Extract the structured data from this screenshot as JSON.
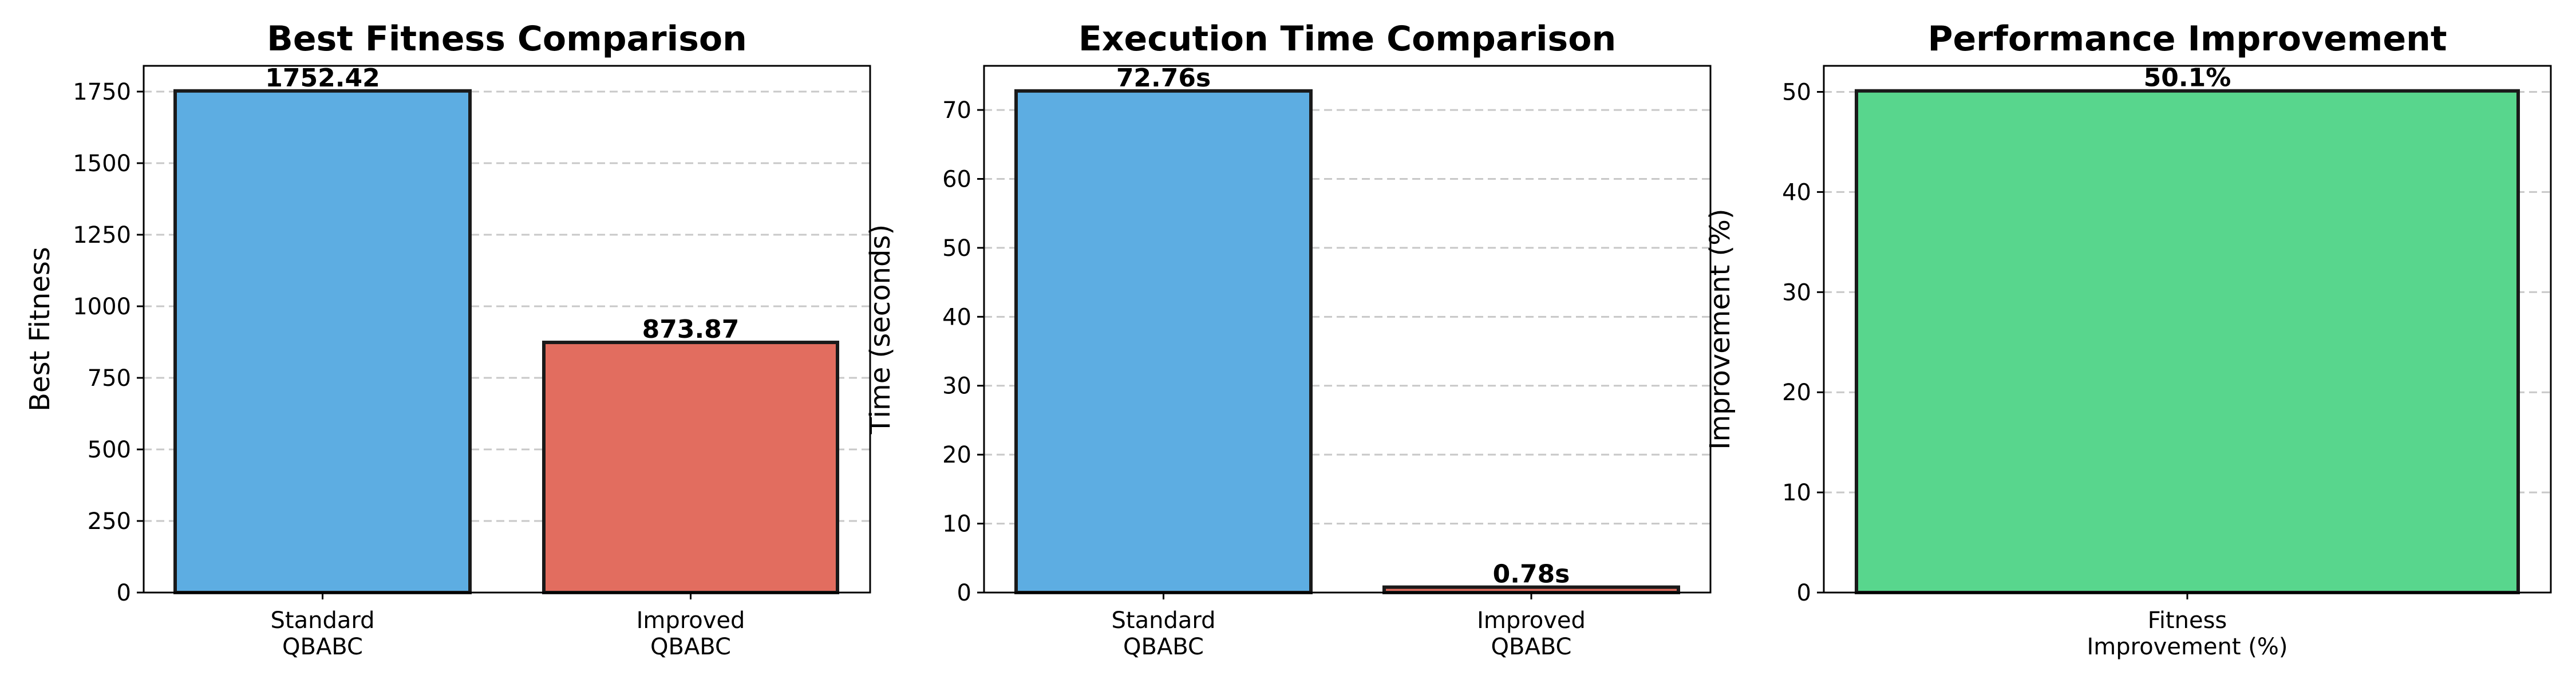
{
  "chart_data": [
    {
      "type": "bar",
      "title": "Best Fitness Comparison",
      "ylabel": "Best Fitness",
      "xlabel": "",
      "ylim": [
        0,
        1840
      ],
      "yticks": [
        0,
        250,
        500,
        750,
        1000,
        1250,
        1500,
        1750
      ],
      "categories": [
        [
          "Standard",
          "QBABC"
        ],
        [
          "Improved",
          "QBABC"
        ]
      ],
      "values": [
        1752.42,
        873.87
      ],
      "value_labels": [
        "1752.42",
        "873.87"
      ],
      "colors": [
        "#5dade2",
        "#e26d5f"
      ],
      "grid": true
    },
    {
      "type": "bar",
      "title": "Execution Time Comparison",
      "ylabel": "Time (seconds)",
      "xlabel": "",
      "ylim": [
        0,
        76.4
      ],
      "yticks": [
        0,
        10,
        20,
        30,
        40,
        50,
        60,
        70
      ],
      "categories": [
        [
          "Standard",
          "QBABC"
        ],
        [
          "Improved",
          "QBABC"
        ]
      ],
      "values": [
        72.76,
        0.78
      ],
      "value_labels": [
        "72.76s",
        "0.78s"
      ],
      "colors": [
        "#5dade2",
        "#e26d5f"
      ],
      "grid": true
    },
    {
      "type": "bar",
      "title": "Performance Improvement",
      "ylabel": "Improvement (%)",
      "xlabel": "",
      "ylim": [
        0,
        52.6
      ],
      "yticks": [
        0,
        10,
        20,
        30,
        40,
        50
      ],
      "categories": [
        [
          "Fitness",
          "Improvement (%)"
        ]
      ],
      "values": [
        50.1
      ],
      "value_labels": [
        "50.1%"
      ],
      "colors": [
        "#58d68d"
      ],
      "grid": true
    }
  ]
}
